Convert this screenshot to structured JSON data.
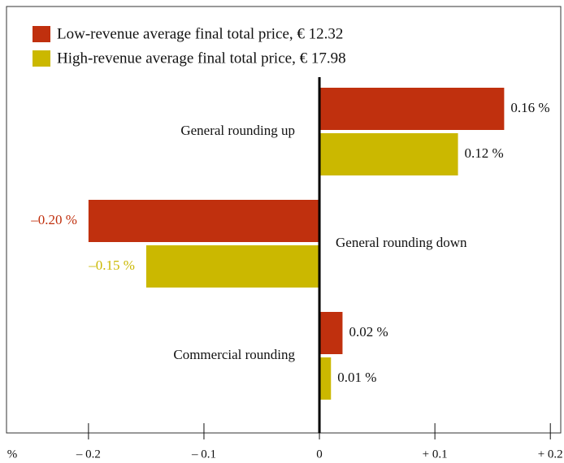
{
  "chart_data": {
    "type": "hbar",
    "categories": [
      "General rounding up",
      "General rounding down",
      "Commercial rounding"
    ],
    "series": [
      {
        "name": "Low-revenue average final total price, € 12.32",
        "color": "#c0300e",
        "values": [
          0.16,
          -0.2,
          0.02
        ],
        "value_labels": [
          "0.16 %",
          "–0.20 %",
          "0.02 %"
        ]
      },
      {
        "name": "High-revenue average final total price, € 17.98",
        "color": "#cbb800",
        "values": [
          0.12,
          -0.15,
          0.01
        ],
        "value_labels": [
          "0.12 %",
          "–0.15 %",
          "0.01 %"
        ]
      }
    ],
    "xlabel": "%",
    "xlim": [
      -0.271,
      0.209
    ],
    "xticks": [
      {
        "value": -0.2,
        "label": "– 0.2"
      },
      {
        "value": -0.1,
        "label": "– 0.1"
      },
      0,
      {
        "value": 0.1,
        "label": "+ 0.1"
      },
      {
        "value": 0.2,
        "label": "+ 0.2"
      }
    ],
    "legend": "top-left"
  }
}
